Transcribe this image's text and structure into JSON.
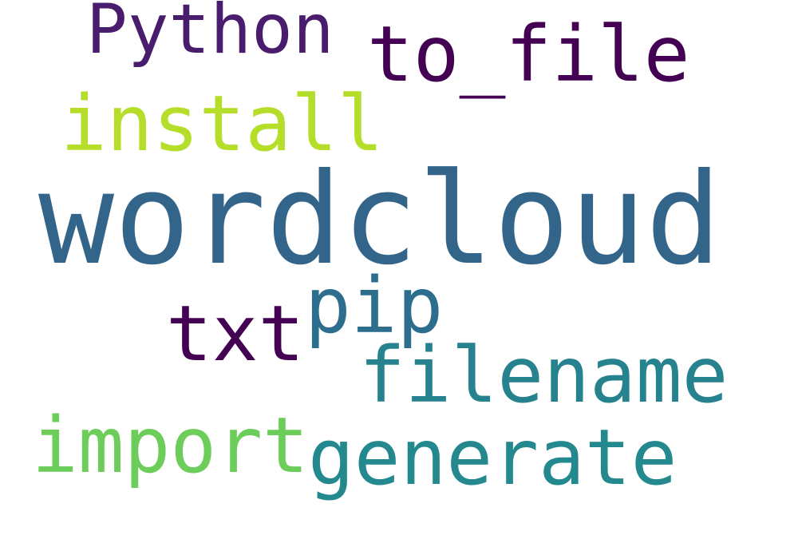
{
  "words": {
    "wordcloud": {
      "text": "wordcloud",
      "color": "#33658a"
    },
    "python": {
      "text": "Python",
      "color": "#4a1c6e"
    },
    "to_file": {
      "text": "to_file",
      "color": "#440154"
    },
    "install": {
      "text": "install",
      "color": "#b5de2b"
    },
    "pip": {
      "text": "pip",
      "color": "#2d6e8e"
    },
    "txt": {
      "text": "txt",
      "color": "#440154"
    },
    "filename": {
      "text": "filename",
      "color": "#26828e"
    },
    "import": {
      "text": "import",
      "color": "#6ccd5a"
    },
    "generate": {
      "text": "generate",
      "color": "#23898e"
    }
  },
  "background_color": "#ffffff"
}
